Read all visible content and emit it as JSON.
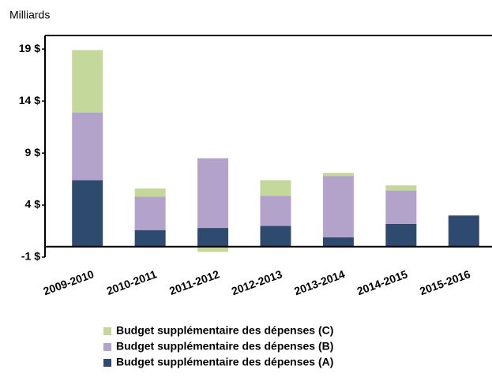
{
  "chart_data": {
    "type": "stacked_bar",
    "ylabel": "Milliards",
    "categories": [
      "2009-2010",
      "2010-2011",
      "2011-2012",
      "2012-2013",
      "2013-2014",
      "2014-2015",
      "2015-2016"
    ],
    "series": [
      {
        "name": "Budget supplémentaire des dépenses (A)",
        "color": "#2e4a6e",
        "values": [
          6.4,
          1.6,
          1.8,
          2.0,
          0.9,
          2.2,
          3.0
        ]
      },
      {
        "name": "Budget supplémentaire des dépenses (B)",
        "color": "#b3a2c9",
        "values": [
          6.5,
          3.2,
          6.7,
          2.9,
          5.9,
          3.2,
          0
        ]
      },
      {
        "name": "Budget supplémentaire des dépenses (C)",
        "color": "#c4d89c",
        "values": [
          6.0,
          0.8,
          -0.5,
          1.5,
          0.3,
          0.5,
          0
        ]
      }
    ],
    "ylim": [
      -1,
      20.3
    ],
    "yticks": [
      {
        "value": -1,
        "label": "-1 $"
      },
      {
        "value": 4,
        "label": "4 $"
      },
      {
        "value": 9,
        "label": "9 $"
      },
      {
        "value": 14,
        "label": "14 $"
      },
      {
        "value": 19,
        "label": "19 $"
      }
    ]
  }
}
